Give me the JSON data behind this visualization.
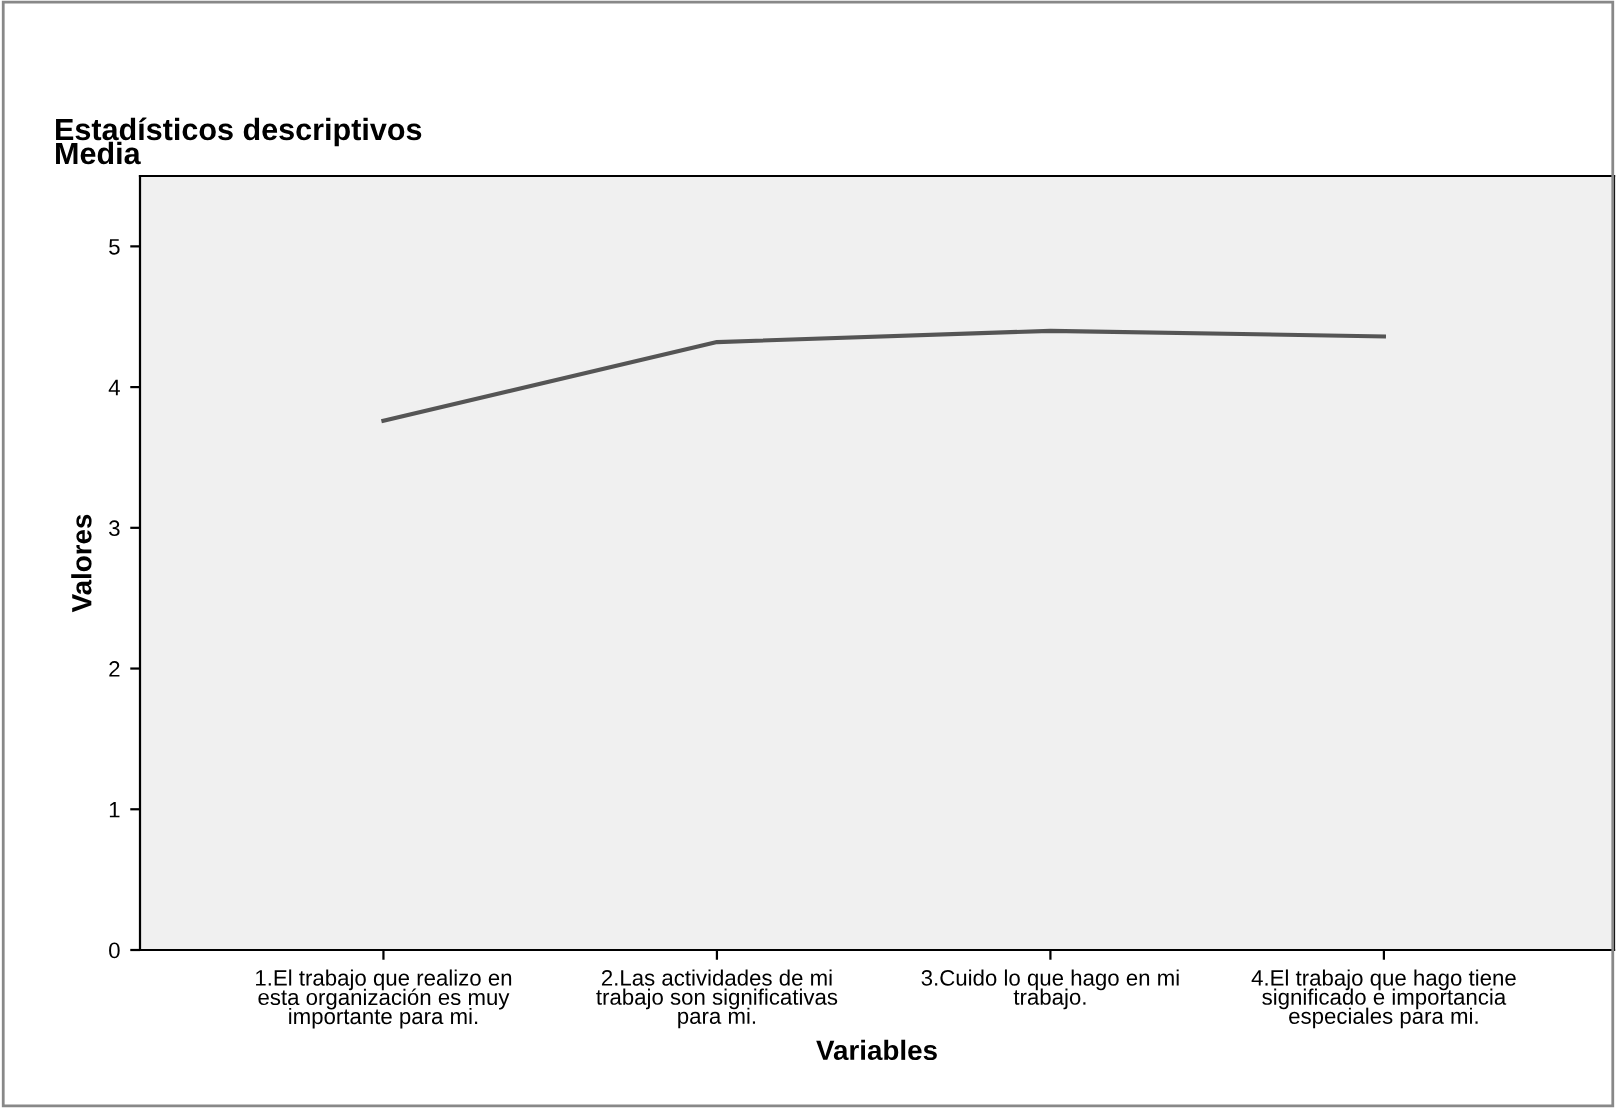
{
  "chart_data": {
    "type": "line",
    "title": "Estadísticos descriptivos",
    "subtitle": "Media",
    "xlabel": "Variables",
    "ylabel": "Valores",
    "categories": [
      "1.El trabajo que realizo en\nesta organización es muy\nimportante para mi.",
      "2.Las actividades de mi\ntrabajo son significativas\npara mi.",
      "3.Cuido lo que hago en mi\ntrabajo.",
      "4.El trabajo que hago tiene\nsignificado e importancia\nespeciales para mi."
    ],
    "series": [
      {
        "color": "#555555",
        "values": [
          3.76,
          4.32,
          4.4,
          4.36
        ]
      }
    ],
    "ylim": [
      0,
      5.5
    ],
    "yticks": [
      0,
      1,
      2,
      3,
      4,
      5
    ],
    "grid": false,
    "legend": false,
    "marker": "none",
    "line_style": "solid"
  }
}
